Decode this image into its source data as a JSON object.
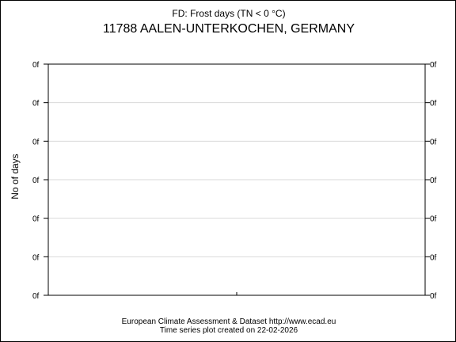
{
  "chart_data": {
    "type": "line",
    "title": "FD: Frost days (TN < 0 °C)",
    "subtitle": "11788 AALEN-UNTERKOCHEN, GERMANY",
    "xlabel": "",
    "ylabel": "No of days",
    "y_tick_labels": [
      "0f",
      "0f",
      "0f",
      "0f",
      "0f",
      "0f",
      "0f"
    ],
    "x_tick_labels": [],
    "series": [],
    "grid": true,
    "axes_mirrored": true
  },
  "footer": {
    "line1": "European Climate Assessment & Dataset  http://www.ecad.eu",
    "line2": "Time series plot created on 22-02-2026"
  },
  "colors": {
    "background": "#ffffff",
    "axis": "#000000",
    "grid": "#d9d9d9"
  }
}
